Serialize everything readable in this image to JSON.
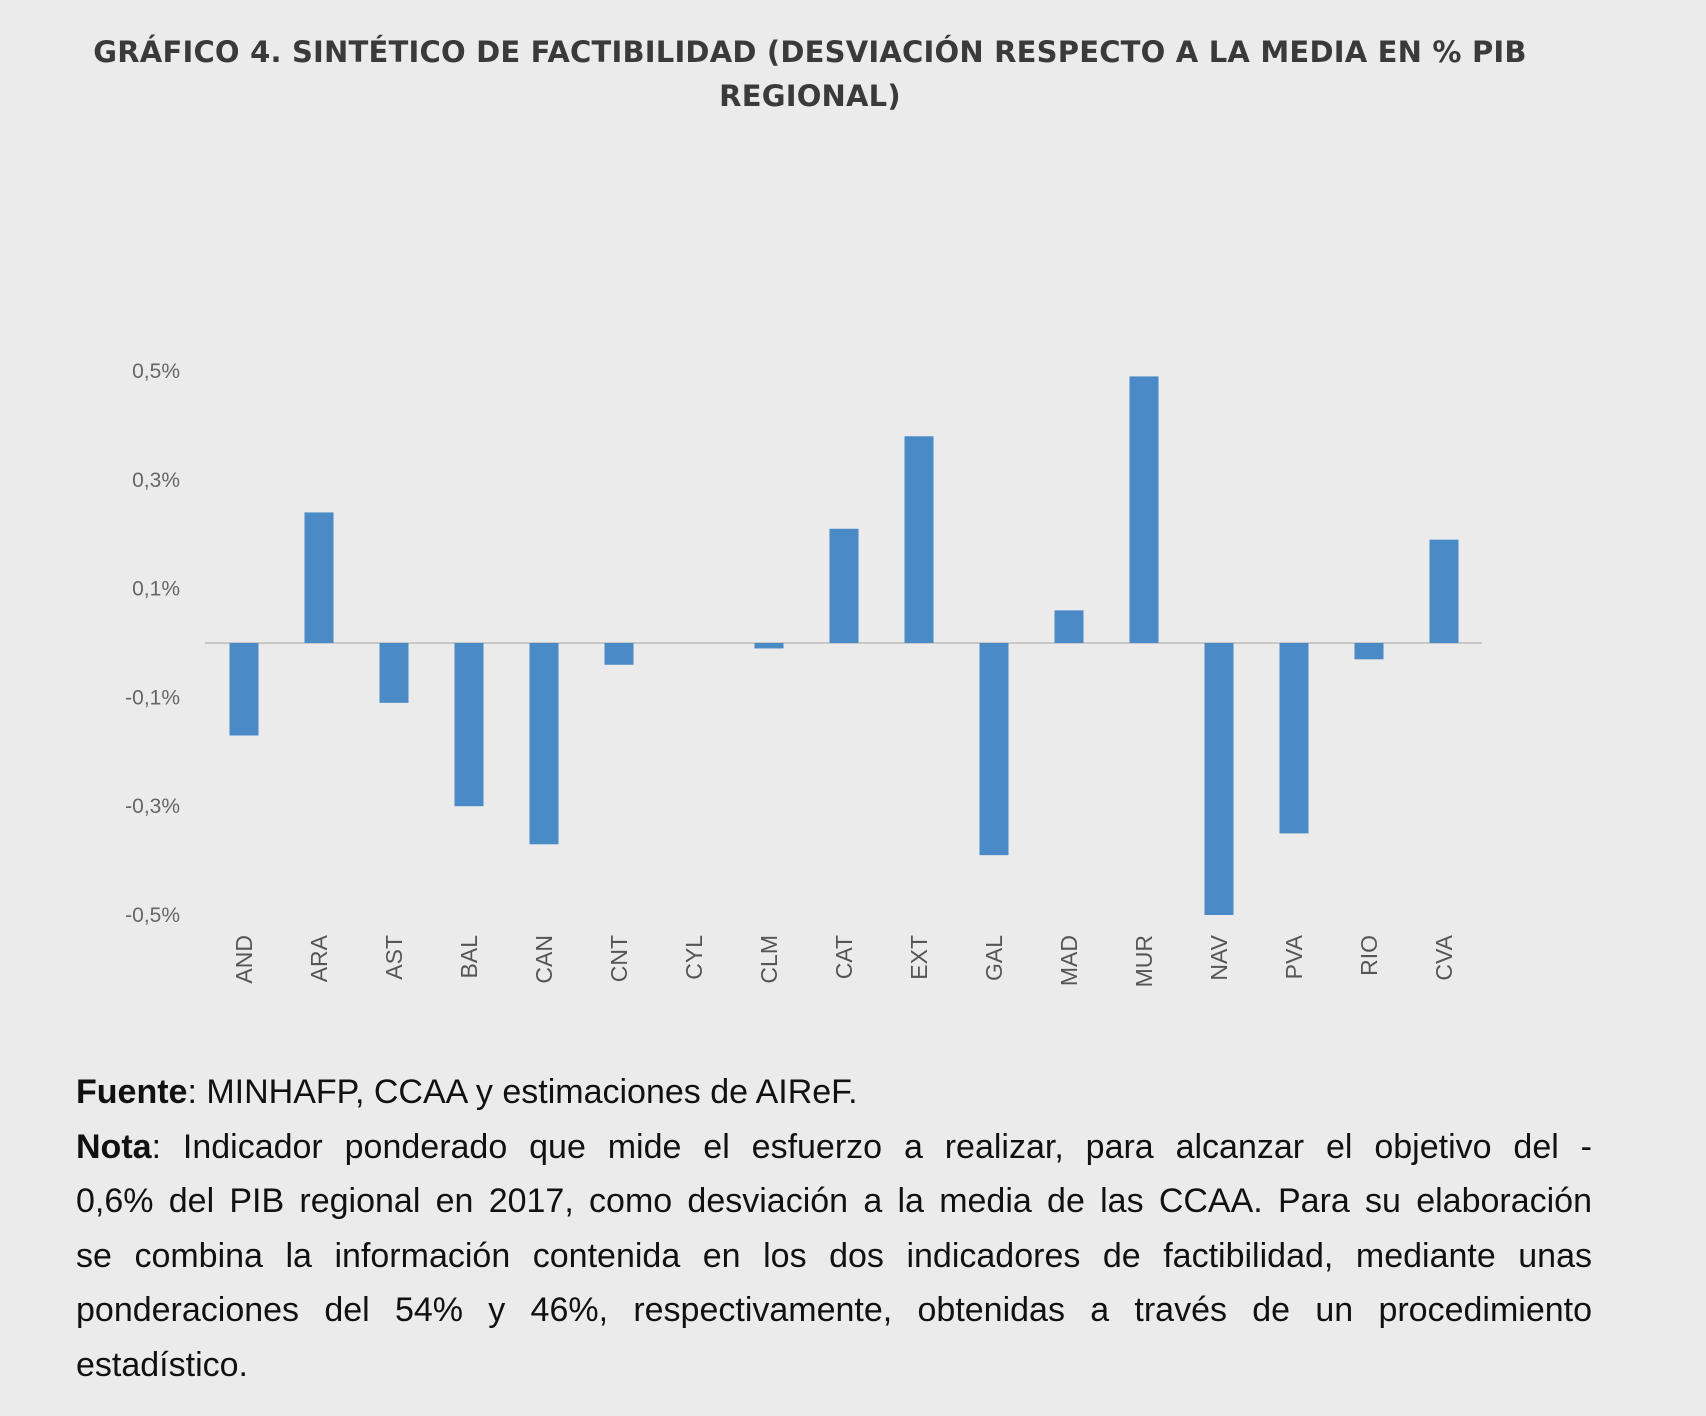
{
  "title": {
    "line1": "GRÁFICO 4. SINTÉTICO DE FACTIBILIDAD (DESVIACIÓN RESPECTO A LA MEDIA EN % PIB",
    "line2": "REGIONAL)"
  },
  "chart_data": {
    "type": "bar",
    "title": "GRÁFICO 4. SINTÉTICO DE FACTIBILIDAD (DESVIACIÓN RESPECTO A LA MEDIA EN % PIB REGIONAL)",
    "xlabel": "",
    "ylabel": "",
    "unit": "% PIB",
    "categories": [
      "AND",
      "ARA",
      "AST",
      "BAL",
      "CAN",
      "CNT",
      "CYL",
      "CLM",
      "CAT",
      "EXT",
      "GAL",
      "MAD",
      "MUR",
      "NAV",
      "PVA",
      "RIO",
      "CVA"
    ],
    "values": [
      -0.17,
      0.24,
      -0.11,
      -0.3,
      -0.37,
      -0.04,
      0.0,
      -0.01,
      0.21,
      0.38,
      -0.39,
      0.06,
      0.49,
      -0.5,
      -0.35,
      -0.03,
      0.19
    ],
    "ylim": [
      -0.5,
      0.5
    ],
    "yticks": [
      0.5,
      0.3,
      0.1,
      -0.1,
      -0.3,
      -0.5
    ],
    "ytick_labels": [
      "0,5%",
      "0,3%",
      "0,1%",
      "-0,1%",
      "-0,3%",
      "-0,5%"
    ],
    "grid": false,
    "legend": "none",
    "bar_color": "#4a8ac6"
  },
  "notes": {
    "source_label": "Fuente",
    "source_text": ": MINHAFP, CCAA y estimaciones de AIReF.",
    "note_label": "Nota",
    "note_first": ": Indicador ponderado que mide el esfuerzo a realizar, para alcanzar el objetivo del -",
    "note_lines": [
      "0,6% del PIB regional en 2017, como desviación a la media de las CCAA. Para su elaboración",
      "se combina la información contenida en los dos indicadores de factibilidad, mediante unas",
      "ponderaciones del 54% y 46%, respectivamente, obtenidas a través de un procedimiento",
      "estadístico."
    ]
  }
}
